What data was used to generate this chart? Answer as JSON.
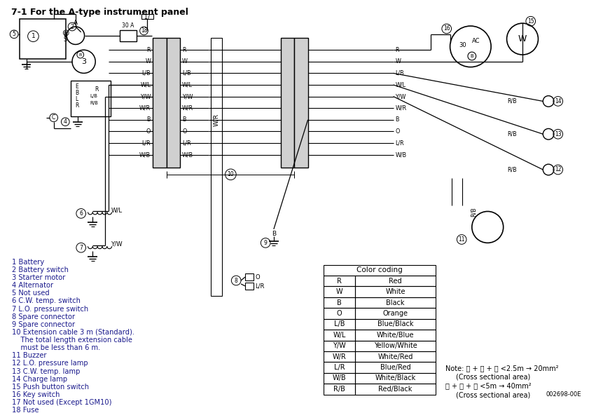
{
  "title": "7-1 For the A-type instrument panel",
  "bg": "#ffffff",
  "lc": "#000000",
  "tc": "#1a1a8c",
  "legend": [
    "1 Battery",
    "2 Battery switch",
    "3 Starter motor",
    "4 Alternator",
    "5 Not used",
    "6 C.W. temp. switch",
    "7 L.O. pressure switch",
    "8 Spare connector",
    "9 Spare connector",
    "10 Extension cable 3 m (Standard).",
    "    The total length extension cable",
    "    must be less than 6 m.",
    "11 Buzzer",
    "12 L.O. pressure lamp",
    "13 C.W. temp. lamp",
    "14 Charge lamp",
    "15 Push button switch",
    "16 Key switch",
    "17 Not used (Except 1GM10)",
    "18 Fuse"
  ],
  "color_codes": [
    [
      "R",
      "Red"
    ],
    [
      "W",
      "White"
    ],
    [
      "B",
      "Black"
    ],
    [
      "O",
      "Orange"
    ],
    [
      "L/B",
      "Blue/Black"
    ],
    [
      "W/L",
      "White/Blue"
    ],
    [
      "Y/W",
      "Yellow/White"
    ],
    [
      "W/R",
      "White/Red"
    ],
    [
      "L/R",
      "Blue/Red"
    ],
    [
      "W/B",
      "White/Black"
    ],
    [
      "R/B",
      "Red/Black"
    ]
  ],
  "note1": "Note: Ⓐ + Ⓑ + Ⓒ <2.5m → 20mm²",
  "note2": "(Cross sectional area)",
  "note3": "Ⓐ + Ⓑ + Ⓒ <5m → 40mm²",
  "note4": "(Cross sectional area)",
  "partno": "002698-00E",
  "fw": 8.51,
  "fh": 5.89,
  "dpi": 100
}
